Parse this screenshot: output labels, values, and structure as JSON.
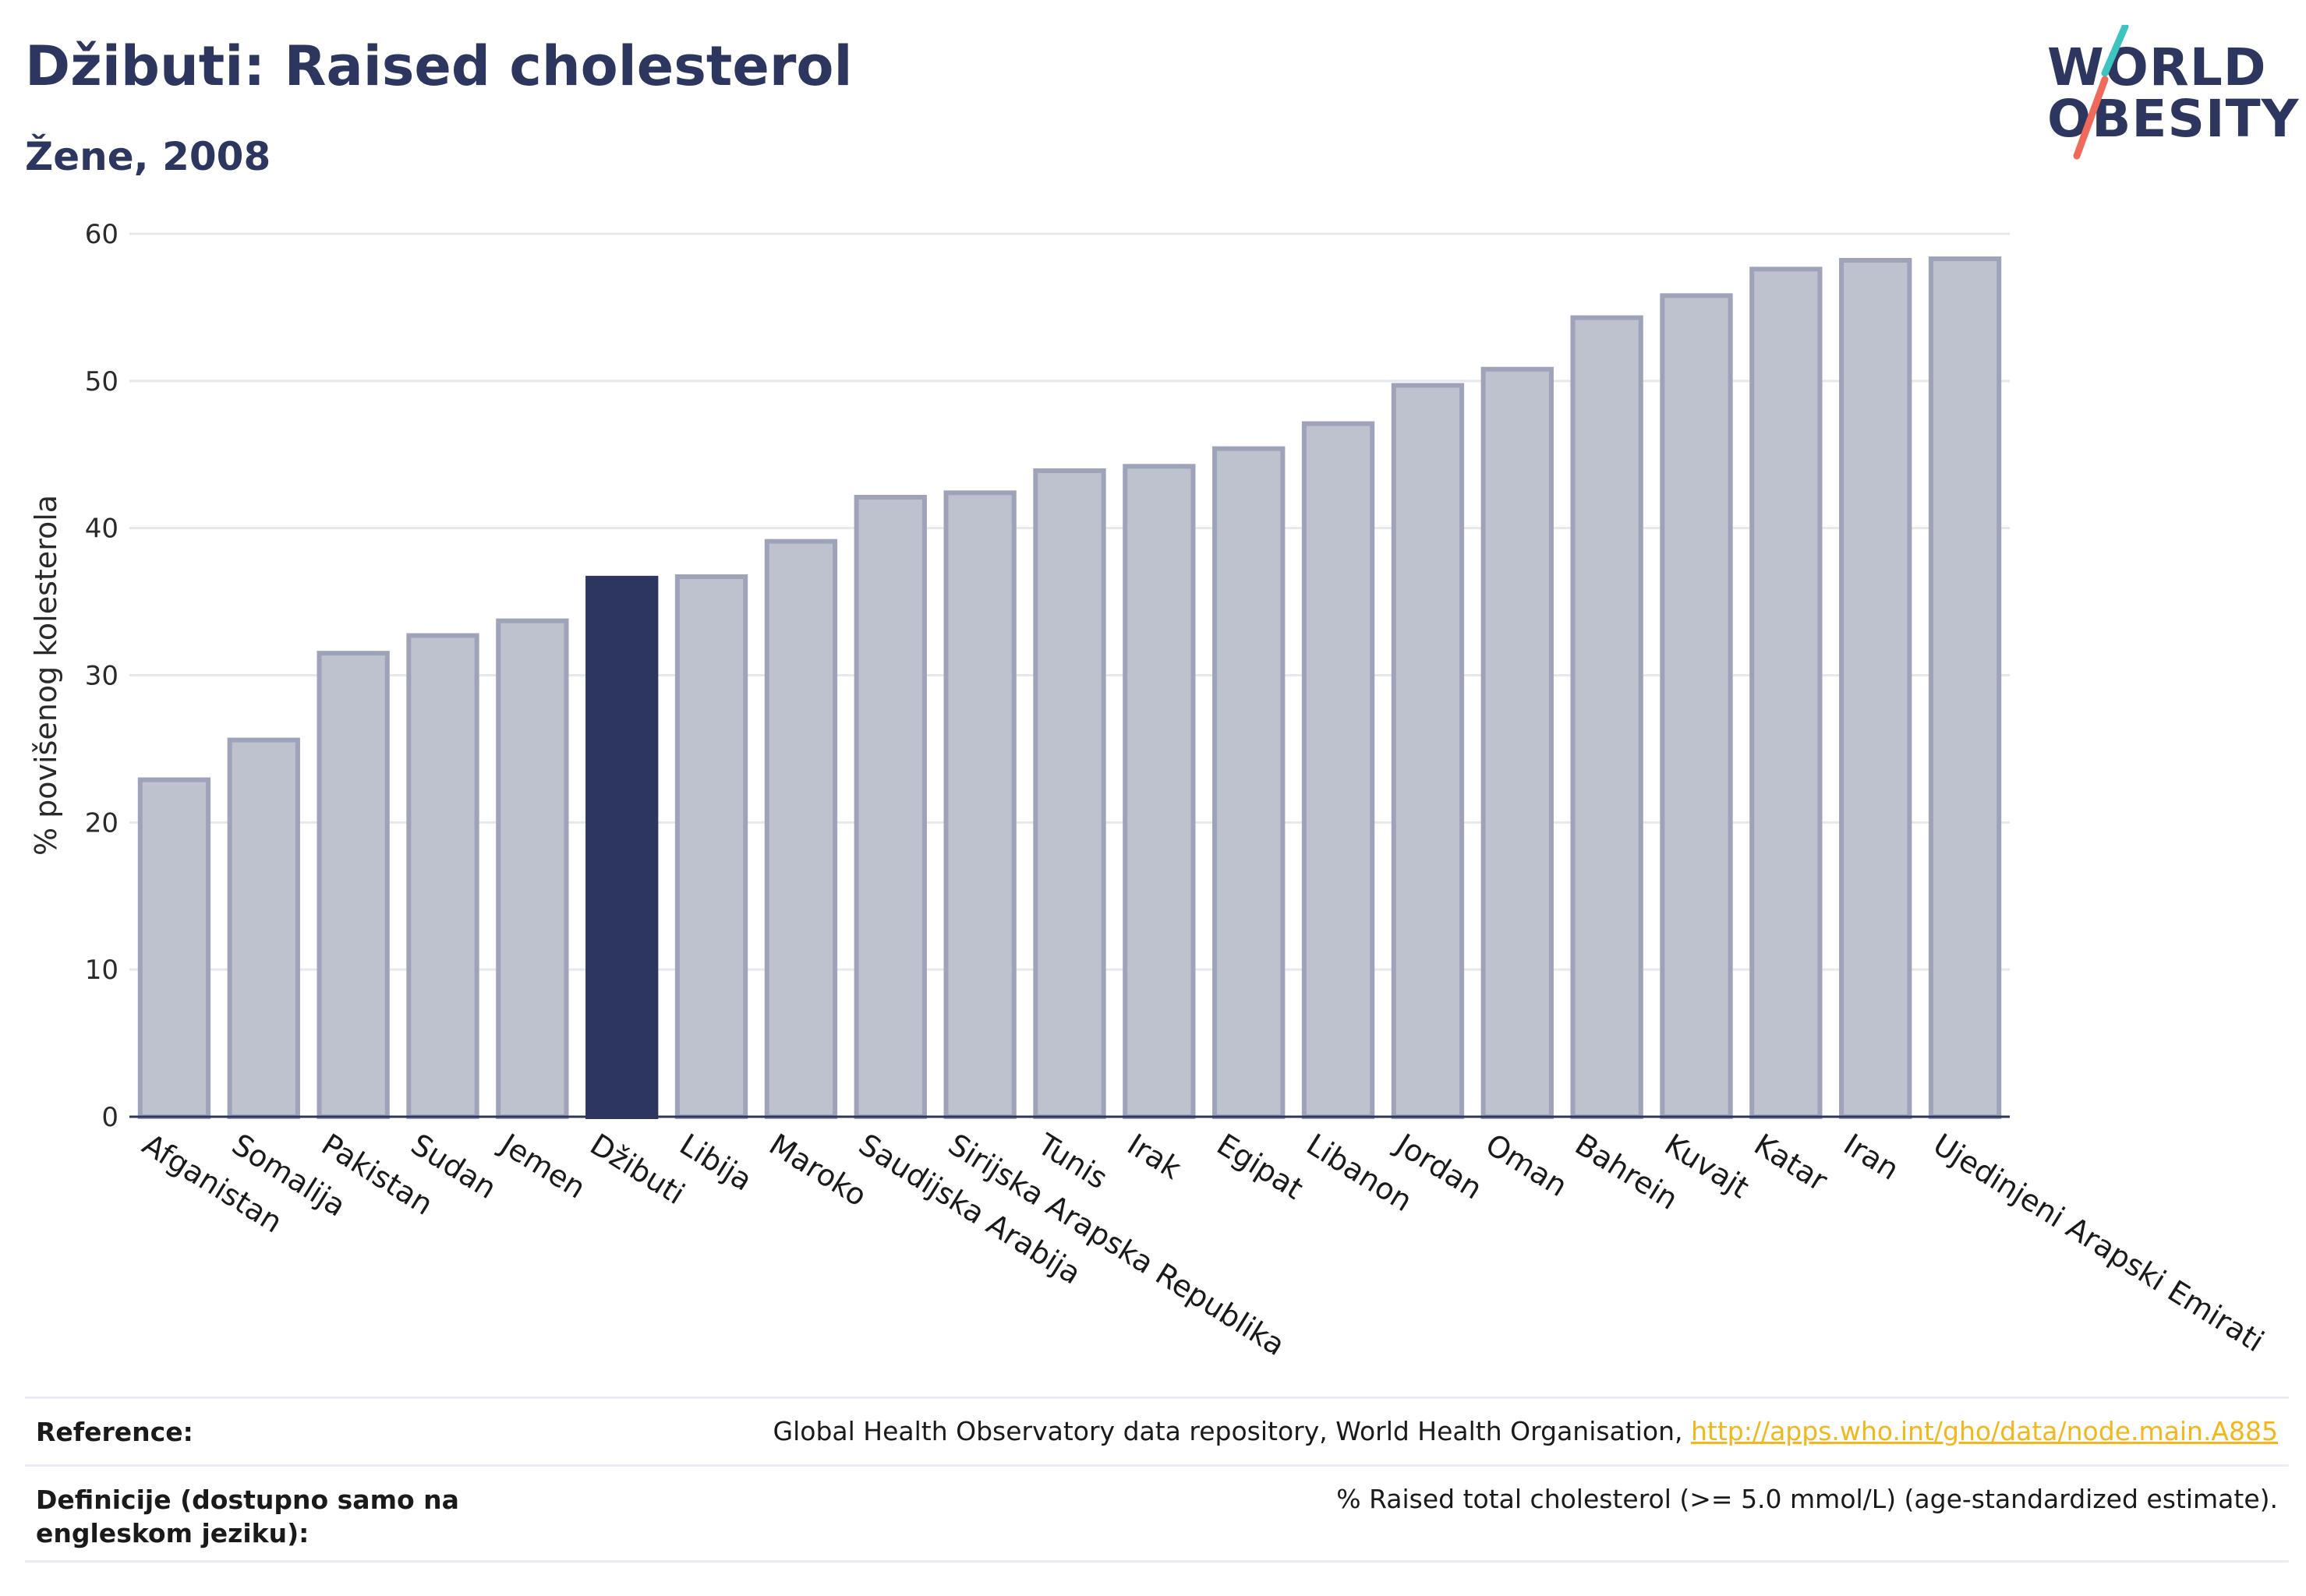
{
  "header": {
    "title": "Džibuti: Raised cholesterol",
    "subtitle": "Žene, 2008"
  },
  "logo": {
    "line1": "WORLD",
    "line2": "OBESITY"
  },
  "colors": {
    "highlight": "#2c365e",
    "bar": "#bec2cf",
    "bar_border": "#9ea3ba",
    "grid": "#e6e8ee",
    "axis": "#2c365e",
    "logo_teal": "#3ec4c0",
    "logo_coral": "#ef6a5a",
    "link": "#f2b71c"
  },
  "chart_data": {
    "type": "bar",
    "ylabel": "% povišenog kolesterola",
    "ylim": [
      0,
      60
    ],
    "yticks": [
      0,
      10,
      20,
      30,
      40,
      50,
      60
    ],
    "grid": true,
    "highlight": "Džibuti",
    "categories": [
      "Afganistan",
      "Somalija",
      "Pakistan",
      "Sudan",
      "Jemen",
      "Džibuti",
      "Libija",
      "Maroko",
      "Saudijska Arabija",
      "Sirijska Arapska Republika",
      "Tunis",
      "Irak",
      "Egipat",
      "Libanon",
      "Jordan",
      "Oman",
      "Bahrein",
      "Kuvajt",
      "Katar",
      "Iran",
      "Ujedinjeni Arapski Emirati"
    ],
    "values": [
      22.9,
      25.6,
      31.5,
      32.7,
      33.7,
      36.6,
      36.7,
      39.1,
      42.1,
      42.4,
      43.9,
      44.2,
      45.4,
      47.1,
      49.7,
      50.8,
      54.3,
      55.8,
      57.6,
      58.2,
      58.3
    ]
  },
  "footer": {
    "reference_label": "Reference:",
    "reference_text": "Global Health Observatory data repository, World Health Organisation, ",
    "reference_link": "http://apps.who.int/gho/data/node.main.A885",
    "definition_label": "Definicije (dostupno samo na engleskom jeziku):",
    "definition_text": "% Raised total cholesterol (>= 5.0 mmol/L) (age-standardized estimate)."
  }
}
